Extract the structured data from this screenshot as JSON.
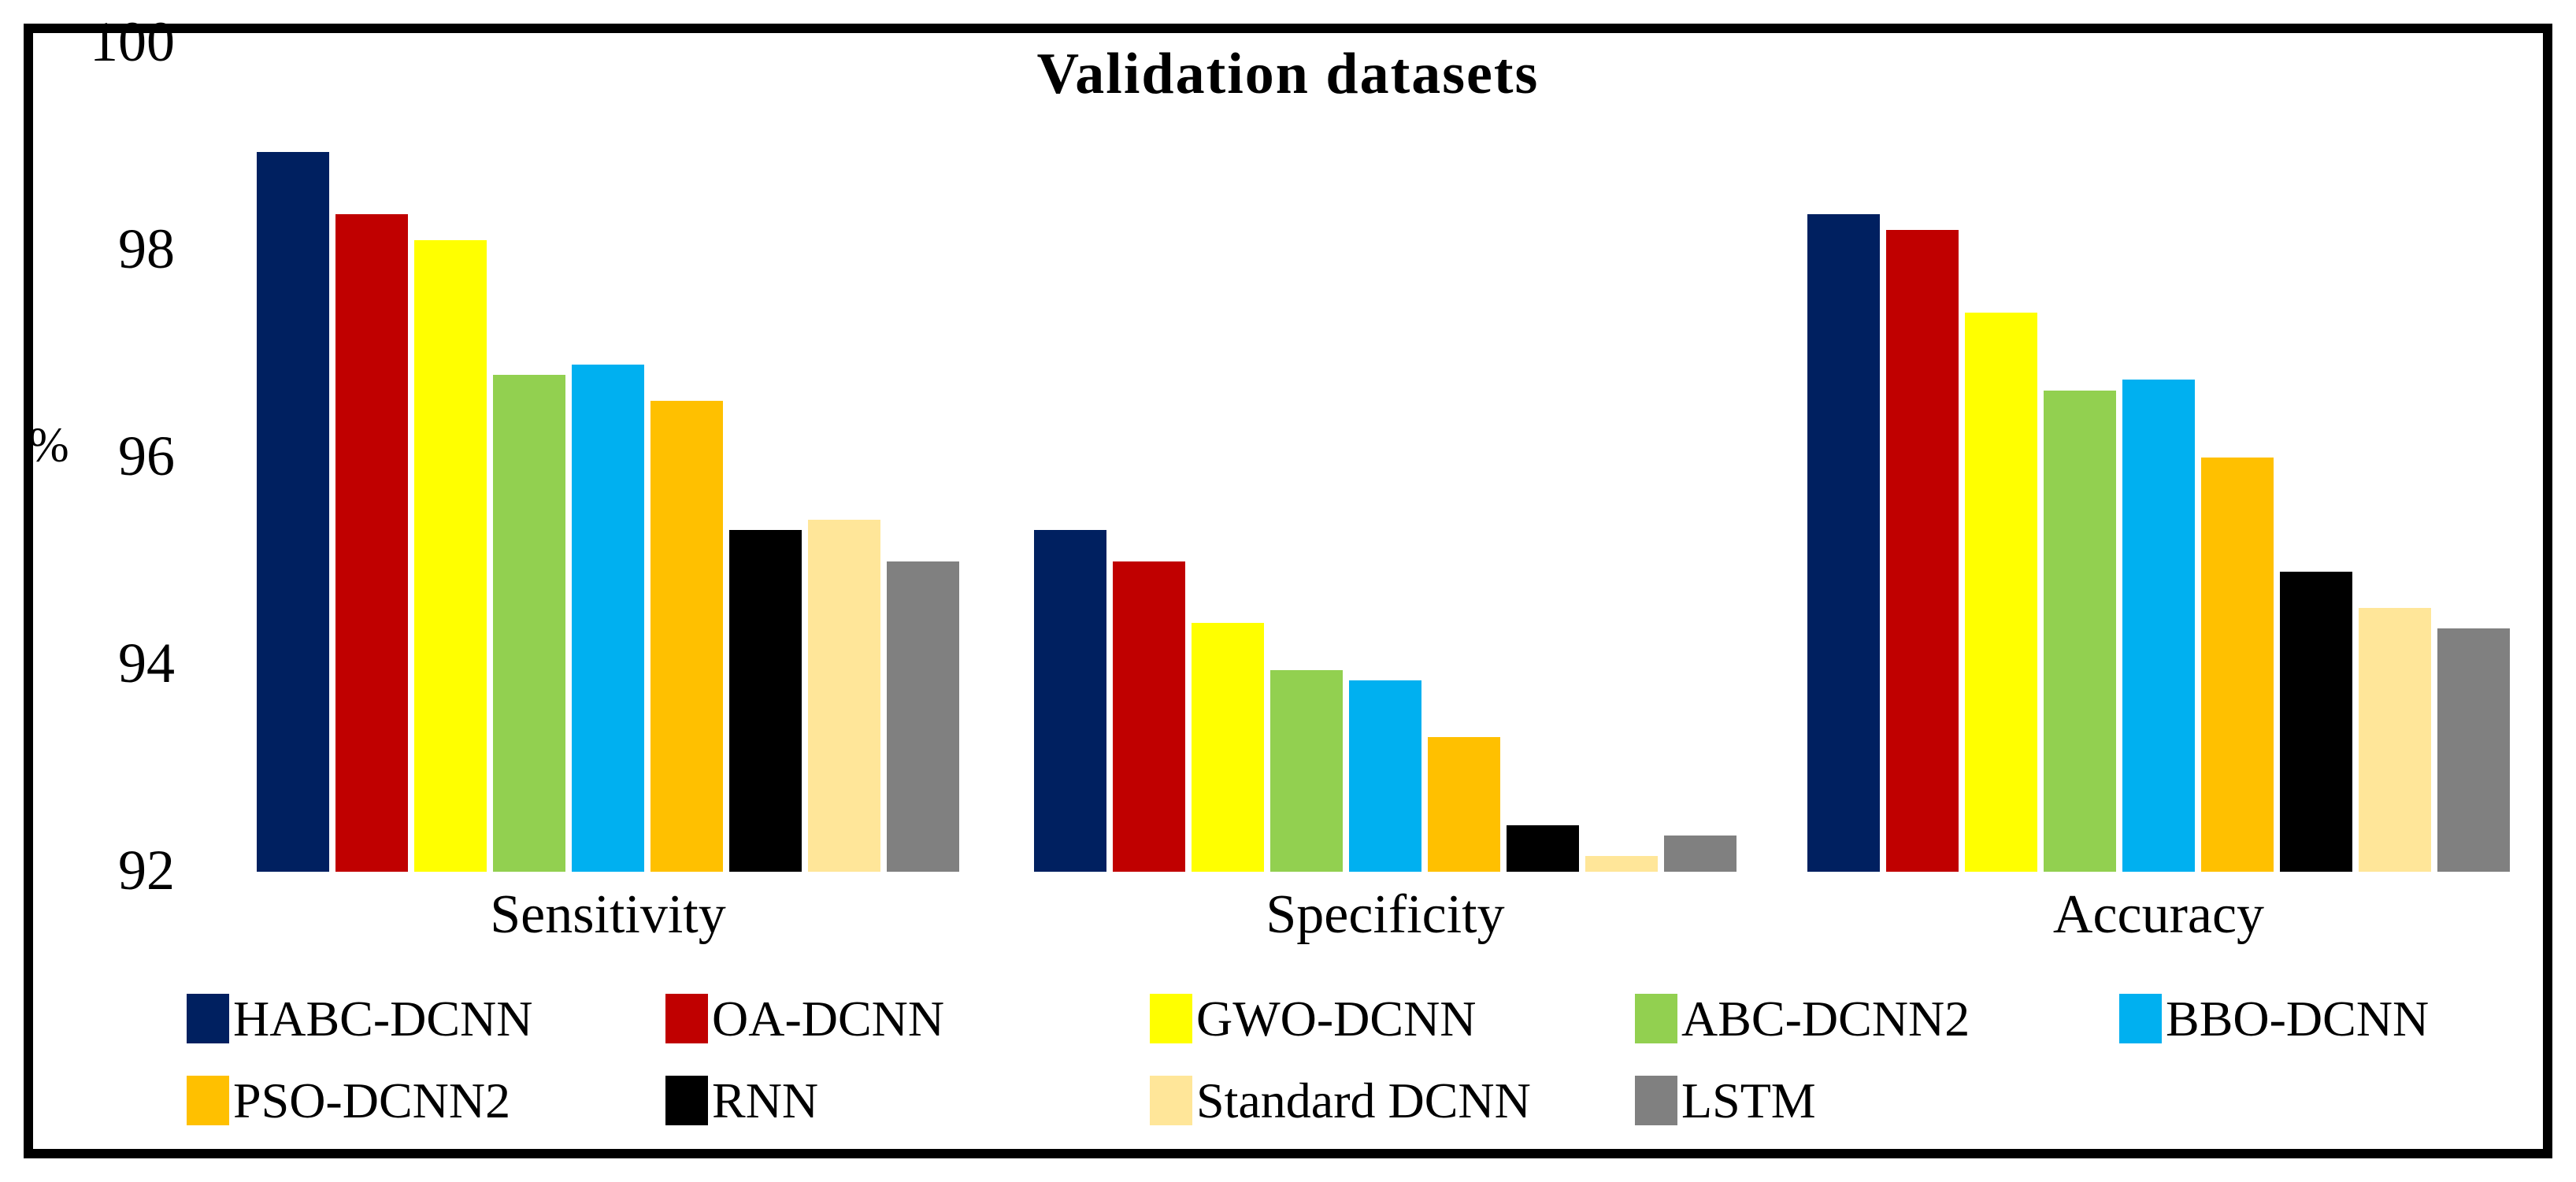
{
  "chart_data": {
    "type": "bar",
    "title": "Validation datasets",
    "ylabel": "%",
    "xlabel": "",
    "categories": [
      "Sensitivity",
      "Specificity",
      "Accuracy"
    ],
    "ylim": [
      92,
      100
    ],
    "y_ticks": [
      100,
      98,
      96,
      94,
      92
    ],
    "grid": false,
    "axis_lines": false,
    "legend_position": "bottom",
    "series": [
      {
        "name": "HABC-DCNN",
        "color": "#002060",
        "values": [
          98.95,
          95.3,
          98.35
        ]
      },
      {
        "name": "OA-DCNN",
        "color": "#C00000",
        "values": [
          98.35,
          95.0,
          98.2
        ]
      },
      {
        "name": "GWO-DCNN",
        "color": "#FFFF00",
        "values": [
          98.1,
          94.4,
          97.4
        ]
      },
      {
        "name": "ABC-DCNN2",
        "color": "#92D050",
        "values": [
          96.8,
          93.95,
          96.65
        ]
      },
      {
        "name": "BBO-DCNN",
        "color": "#00B0F0",
        "values": [
          96.9,
          93.85,
          96.75
        ]
      },
      {
        "name": "PSO-DCNN2",
        "color": "#FFC000",
        "values": [
          96.55,
          93.3,
          96.0
        ]
      },
      {
        "name": "RNN",
        "color": "#000000",
        "values": [
          95.3,
          92.45,
          94.9
        ]
      },
      {
        "name": "Standard DCNN",
        "color": "#FFE699",
        "values": [
          95.4,
          92.15,
          94.55
        ]
      },
      {
        "name": "LSTM",
        "color": "#808080",
        "values": [
          95.0,
          92.35,
          94.35
        ]
      }
    ],
    "legend_rows": [
      [
        "HABC-DCNN",
        "OA-DCNN",
        "GWO-DCNN",
        "ABC-DCNN2",
        "BBO-DCNN"
      ],
      [
        "PSO-DCNN2",
        "RNN",
        "Standard DCNN",
        "LSTM"
      ]
    ]
  },
  "layout_text": {
    "title": "Validation datasets",
    "ylabel": "%"
  }
}
